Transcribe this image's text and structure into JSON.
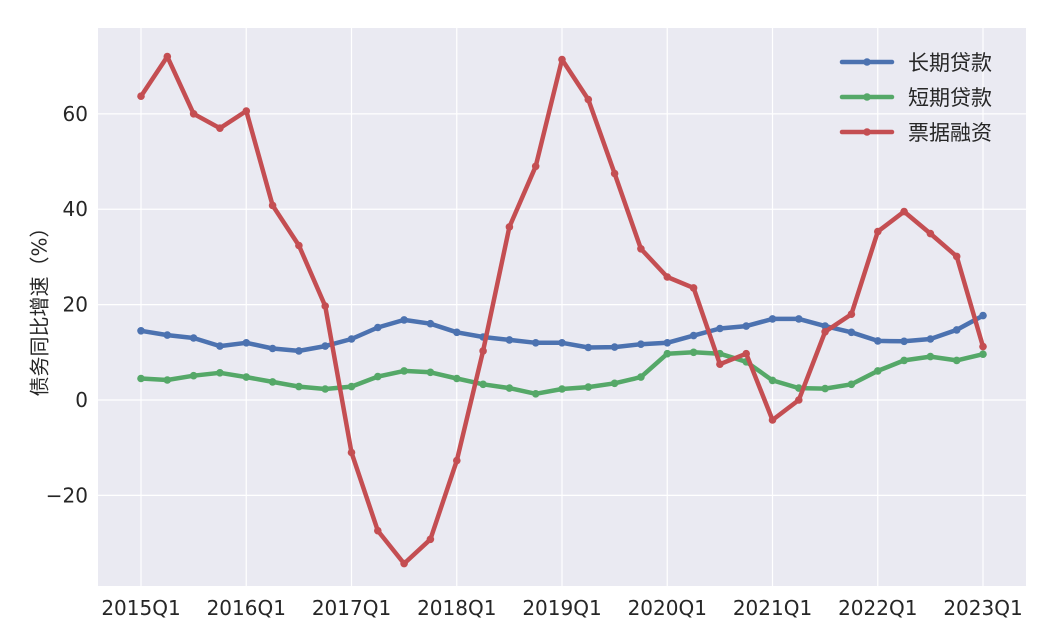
{
  "chart_data": {
    "type": "line",
    "title": "",
    "xlabel": "",
    "ylabel": "债务同比增速（%）",
    "x": [
      "2015Q1",
      "2015Q2",
      "2015Q3",
      "2015Q4",
      "2016Q1",
      "2016Q2",
      "2016Q3",
      "2016Q4",
      "2017Q1",
      "2017Q2",
      "2017Q3",
      "2017Q4",
      "2018Q1",
      "2018Q2",
      "2018Q3",
      "2018Q4",
      "2019Q1",
      "2019Q2",
      "2019Q3",
      "2019Q4",
      "2020Q1",
      "2020Q2",
      "2020Q3",
      "2020Q4",
      "2021Q1",
      "2021Q2",
      "2021Q3",
      "2021Q4",
      "2022Q1",
      "2022Q2",
      "2022Q3",
      "2022Q4",
      "2023Q1"
    ],
    "xticks": [
      "2015Q1",
      "2016Q1",
      "2017Q1",
      "2018Q1",
      "2019Q1",
      "2020Q1",
      "2021Q1",
      "2022Q1",
      "2023Q1"
    ],
    "yticks": [
      -20,
      0,
      20,
      40,
      60
    ],
    "ytick_labels": [
      "−20",
      "0",
      "20",
      "40",
      "60"
    ],
    "ylim": [
      -39,
      78
    ],
    "grid": true,
    "legend_position": "top-right",
    "series": [
      {
        "name": "长期贷款",
        "color": "#4c72b0",
        "values": [
          14.5,
          13.6,
          13.0,
          11.3,
          12.0,
          10.8,
          10.3,
          11.3,
          12.8,
          15.2,
          16.8,
          16.0,
          14.2,
          13.2,
          12.6,
          12.0,
          12.0,
          11.0,
          11.1,
          11.7,
          12.0,
          13.5,
          15.0,
          15.5,
          17.0,
          17.0,
          15.5,
          14.2,
          12.4,
          12.3,
          12.8,
          14.7,
          17.7
        ]
      },
      {
        "name": "短期贷款",
        "color": "#55a868",
        "values": [
          4.5,
          4.2,
          5.1,
          5.7,
          4.8,
          3.8,
          2.8,
          2.3,
          2.8,
          4.9,
          6.1,
          5.8,
          4.5,
          3.3,
          2.5,
          1.3,
          2.3,
          2.7,
          3.5,
          4.8,
          9.7,
          10.0,
          9.7,
          8.0,
          4.1,
          2.5,
          2.4,
          3.3,
          6.1,
          8.3,
          9.1,
          8.3,
          9.6
        ]
      },
      {
        "name": "票据融资",
        "color": "#c44e52",
        "values": [
          63.7,
          72.0,
          60.0,
          57.0,
          60.6,
          40.8,
          32.4,
          19.7,
          -11.0,
          -27.4,
          -34.3,
          -29.2,
          -12.7,
          10.3,
          36.3,
          49.0,
          71.4,
          63.0,
          47.5,
          31.7,
          25.8,
          23.5,
          7.5,
          9.7,
          -4.2,
          0.0,
          14.3,
          18.0,
          35.3,
          39.5,
          34.9,
          30.1,
          11.2
        ]
      }
    ]
  }
}
